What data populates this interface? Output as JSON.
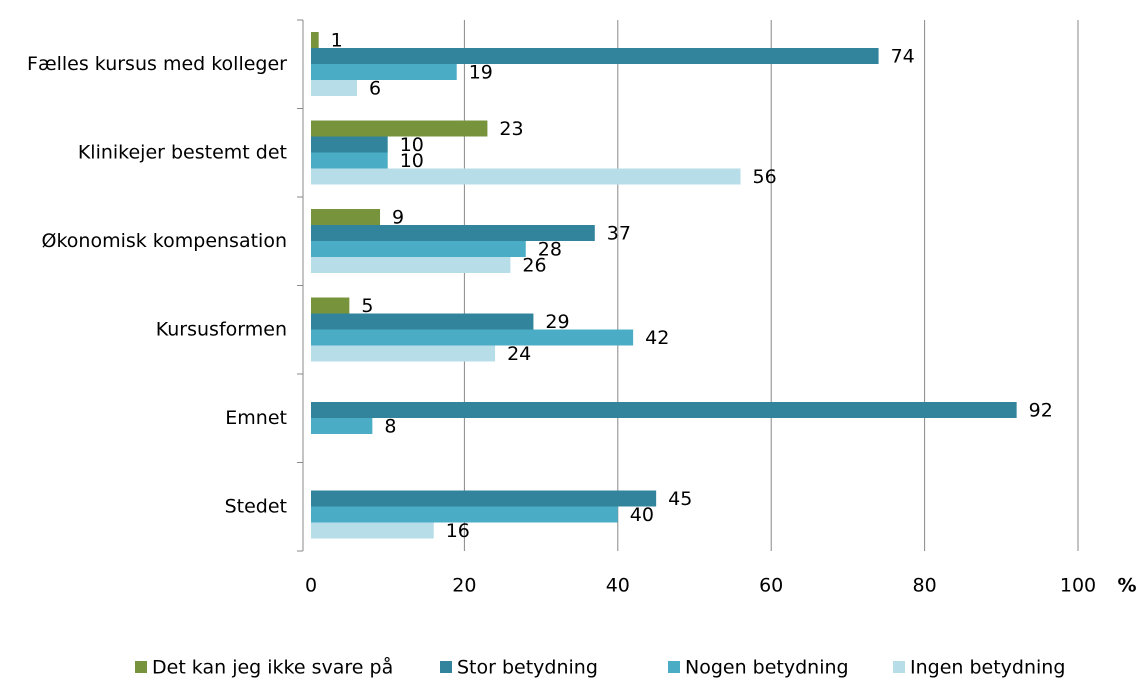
{
  "chart_data": {
    "type": "bar",
    "orientation": "horizontal",
    "categories": [
      "Fælles kursus med kolleger",
      "Klinikejer bestemt det",
      "Økonomisk kompensation",
      "Kursusformen",
      "Emnet",
      "Stedet"
    ],
    "series": [
      {
        "name": "Det kan jeg ikke svare på",
        "color": "#77933c",
        "values": [
          1,
          23,
          9,
          5,
          null,
          null
        ]
      },
      {
        "name": "Stor betydning",
        "color": "#31849b",
        "values": [
          74,
          10,
          37,
          29,
          92,
          45
        ]
      },
      {
        "name": "Nogen betydning",
        "color": "#4bacc6",
        "values": [
          19,
          10,
          28,
          42,
          8,
          40
        ]
      },
      {
        "name": "Ingen betydning",
        "color": "#b7dee8",
        "values": [
          6,
          56,
          26,
          24,
          null,
          16
        ]
      }
    ],
    "xlim": [
      0,
      100
    ],
    "xticks": [
      0,
      20,
      40,
      60,
      80,
      100
    ],
    "x_unit": "%",
    "grid": true,
    "legend": "bottom"
  }
}
